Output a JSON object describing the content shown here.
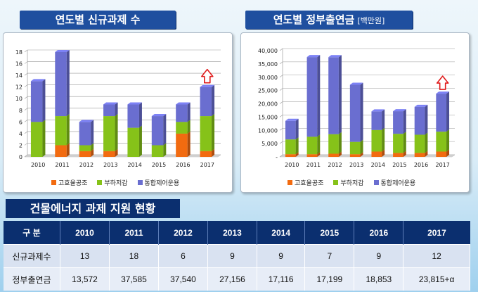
{
  "left_title": "연도별 신규과제 수",
  "right_title": "연도별 정부출연금",
  "right_title_unit": "[백만원]",
  "section_title": "건물에너지 과제 지원 현황",
  "colors": {
    "series1": "#f26b10",
    "series2": "#86c219",
    "series3": "#6a6ed0",
    "navy": "#0b2f6f",
    "arrow": "#e01a1a"
  },
  "legend": [
    "고효율공조",
    "부하저감",
    "통합제어운용"
  ],
  "chart_data": [
    {
      "type": "bar",
      "stacked": true,
      "categories": [
        "2010",
        "2011",
        "2012",
        "2013",
        "2014",
        "2015",
        "2016",
        "2017"
      ],
      "series": [
        {
          "name": "고효율공조",
          "values": [
            0,
            2,
            1,
            1,
            0,
            0,
            4,
            1
          ]
        },
        {
          "name": "부하저감",
          "values": [
            6,
            5,
            1,
            6,
            5,
            2,
            2,
            6
          ]
        },
        {
          "name": "통합제어운용",
          "values": [
            7,
            11,
            4,
            2,
            4,
            5,
            3,
            5
          ]
        }
      ],
      "yticks": [
        "0",
        "2",
        "4",
        "6",
        "8",
        "10",
        "12",
        "14",
        "16",
        "18"
      ],
      "ylim": [
        0,
        18
      ],
      "grid": true,
      "legend_position": "bottom",
      "annotation": "up-arrow on 2017"
    },
    {
      "type": "bar",
      "stacked": true,
      "categories": [
        "2010",
        "2011",
        "2012",
        "2013",
        "2014",
        "2015",
        "2016",
        "2017"
      ],
      "series": [
        {
          "name": "고효율공조",
          "values": [
            1000,
            1000,
            1200,
            1000,
            2000,
            1500,
            1500,
            2000
          ]
        },
        {
          "name": "부하저감",
          "values": [
            5572,
            6585,
            7340,
            4656,
            8116,
            7199,
            6853,
            7500
          ]
        },
        {
          "name": "통합제어운용",
          "values": [
            7000,
            30000,
            29000,
            21500,
            7000,
            8500,
            10500,
            14315
          ]
        }
      ],
      "yticks": [
        "-",
        "5,000",
        "10,000",
        "15,000",
        "20,000",
        "25,000",
        "30,000",
        "35,000",
        "40,000"
      ],
      "ylim": [
        0,
        40000
      ],
      "grid": true,
      "legend_position": "bottom",
      "annotation": "up-arrow on 2017"
    }
  ],
  "table": {
    "header_label": "구    분",
    "years": [
      "2010",
      "2011",
      "2012",
      "2013",
      "2014",
      "2015",
      "2016",
      "2017"
    ],
    "rows": [
      {
        "label": "신규과제수",
        "values": [
          "13",
          "18",
          "6",
          "9",
          "9",
          "7",
          "9",
          "12"
        ]
      },
      {
        "label": "정부출연금",
        "values": [
          "13,572",
          "37,585",
          "37,540",
          "27,156",
          "17,116",
          "17,199",
          "18,853",
          "23,815+α"
        ]
      }
    ]
  }
}
